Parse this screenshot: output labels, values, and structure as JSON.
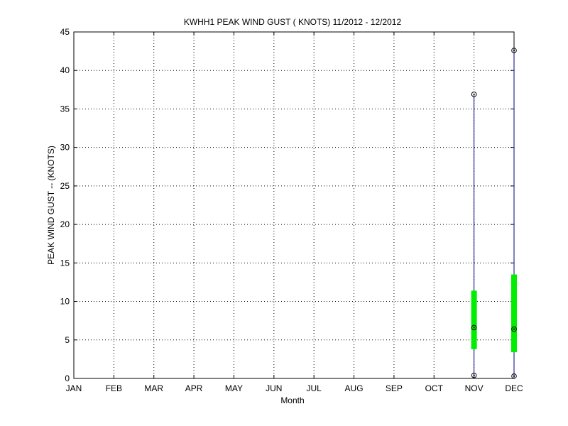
{
  "chart_data": {
    "type": "box",
    "title": "KWHH1  PEAK WIND GUST ( KNOTS) 11/2012 - 12/2012",
    "xlabel": "Month",
    "ylabel": "PEAK WIND GUST -- (KNOTS)",
    "categories": [
      "JAN",
      "FEB",
      "MAR",
      "APR",
      "MAY",
      "JUN",
      "JUL",
      "AUG",
      "SEP",
      "OCT",
      "NOV",
      "DEC"
    ],
    "ylim": [
      0,
      45
    ],
    "yticks": [
      0,
      5,
      10,
      15,
      20,
      25,
      30,
      35,
      40,
      45
    ],
    "grid": true,
    "boxes": [
      {
        "category": "NOV",
        "min": 0.4,
        "q1": 3.8,
        "median": 6.6,
        "q3": 11.4,
        "max": 36.9
      },
      {
        "category": "DEC",
        "min": 0.3,
        "q1": 3.4,
        "median": 6.4,
        "q3": 13.5,
        "max": 42.6
      }
    ],
    "colors": {
      "whisker": "#000080",
      "box": "#00ee00",
      "marker": "#000000",
      "grid": "#000000"
    }
  }
}
